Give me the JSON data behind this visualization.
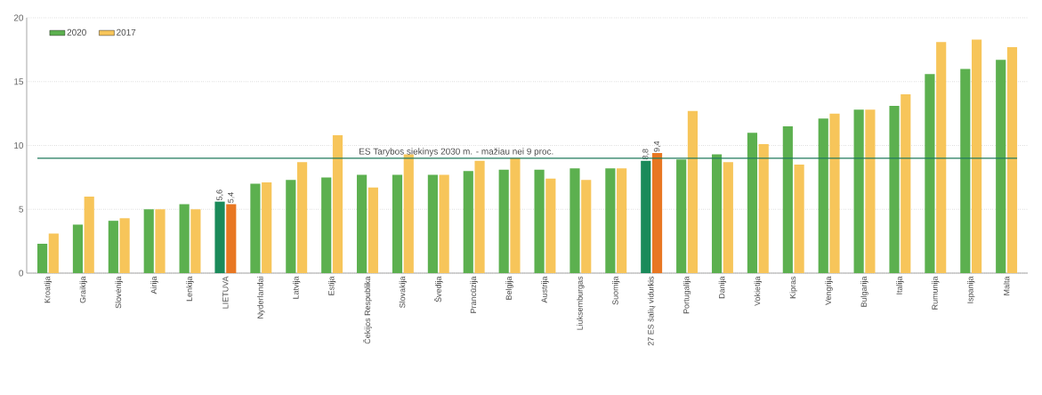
{
  "chart_data": {
    "type": "bar",
    "categories": [
      "Kroatija",
      "Graikija",
      "Slovėnija",
      "Airija",
      "Lenkija",
      "LIETUVA",
      "Nyderlandai",
      "Latvija",
      "Estija",
      "Čekijos Respublika",
      "Slovakija",
      "Švedija",
      "Prancūzija",
      "Belgija",
      "Austrija",
      "Liuksemburgas",
      "Suomija",
      "27 ES šalių vidurkis",
      "Portugalija",
      "Danija",
      "Vokietija",
      "Kipras",
      "Vengrija",
      "Bulgarija",
      "Italija",
      "Rumunija",
      "Ispanija",
      "Malta"
    ],
    "series": [
      {
        "name": "2020",
        "color": "#5cb04f",
        "colors": [
          "#5cb04f",
          "#5cb04f",
          "#5cb04f",
          "#5cb04f",
          "#5cb04f",
          "#1a8a5a",
          "#5cb04f",
          "#5cb04f",
          "#5cb04f",
          "#5cb04f",
          "#5cb04f",
          "#5cb04f",
          "#5cb04f",
          "#5cb04f",
          "#5cb04f",
          "#5cb04f",
          "#5cb04f",
          "#1a8a5a",
          "#5cb04f",
          "#5cb04f",
          "#5cb04f",
          "#5cb04f",
          "#5cb04f",
          "#5cb04f",
          "#5cb04f",
          "#5cb04f",
          "#5cb04f",
          "#5cb04f"
        ],
        "values": [
          2.3,
          3.8,
          4.1,
          5.0,
          5.4,
          5.6,
          7.0,
          7.3,
          7.5,
          7.7,
          7.7,
          7.7,
          8.0,
          8.1,
          8.1,
          8.2,
          8.2,
          8.8,
          8.9,
          9.3,
          11.0,
          11.5,
          12.1,
          12.8,
          13.1,
          15.6,
          16.0,
          16.7
        ],
        "value_labels": [
          null,
          null,
          null,
          null,
          null,
          "5,6",
          null,
          null,
          null,
          null,
          null,
          null,
          null,
          null,
          null,
          null,
          null,
          "8,8",
          null,
          null,
          null,
          null,
          null,
          null,
          null,
          null,
          null,
          null
        ]
      },
      {
        "name": "2017",
        "color": "#f7c55a",
        "colors": [
          "#f7c55a",
          "#f7c55a",
          "#f7c55a",
          "#f7c55a",
          "#f7c55a",
          "#e87722",
          "#f7c55a",
          "#f7c55a",
          "#f7c55a",
          "#f7c55a",
          "#f7c55a",
          "#f7c55a",
          "#f7c55a",
          "#f7c55a",
          "#f7c55a",
          "#f7c55a",
          "#f7c55a",
          "#e87722",
          "#f7c55a",
          "#f7c55a",
          "#f7c55a",
          "#f7c55a",
          "#f7c55a",
          "#f7c55a",
          "#f7c55a",
          "#f7c55a",
          "#f7c55a",
          "#f7c55a"
        ],
        "values": [
          3.1,
          6.0,
          4.3,
          5.0,
          5.0,
          5.4,
          7.1,
          8.7,
          10.8,
          6.7,
          9.3,
          7.7,
          8.8,
          9.0,
          7.4,
          7.3,
          8.2,
          9.4,
          12.7,
          8.7,
          10.1,
          8.5,
          12.5,
          12.8,
          14.0,
          18.1,
          18.3,
          17.7
        ],
        "value_labels": [
          null,
          null,
          null,
          null,
          null,
          "5,4",
          null,
          null,
          null,
          null,
          null,
          null,
          null,
          null,
          null,
          null,
          null,
          "9,4",
          null,
          null,
          null,
          null,
          null,
          null,
          null,
          null,
          null,
          null
        ]
      }
    ],
    "ylim": [
      0,
      20
    ],
    "yticks": [
      0,
      5,
      10,
      15,
      20
    ],
    "grid": "y",
    "legend": "top left",
    "ref_lines": [
      {
        "axis": "y",
        "value": 9,
        "label": "ES Tarybos siekinys 2030 m. - mažiau nei 9 proc.",
        "color": "#1f7a5c"
      }
    ]
  }
}
